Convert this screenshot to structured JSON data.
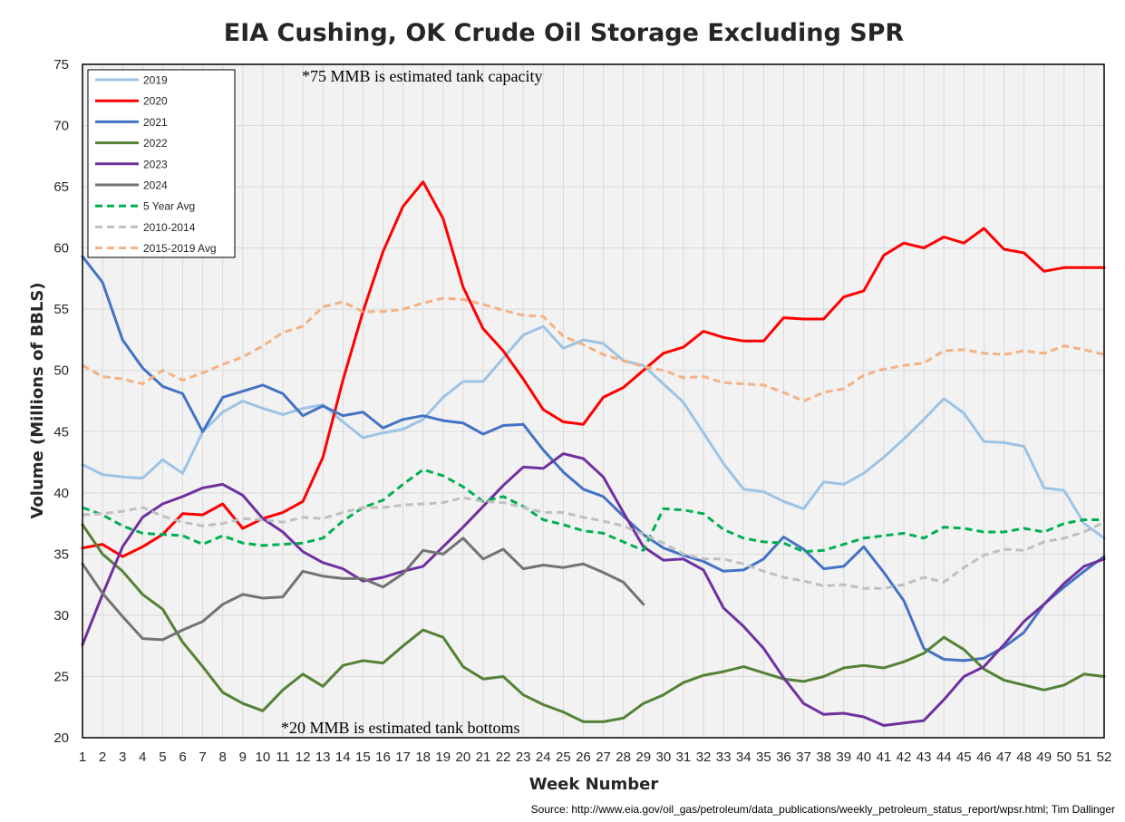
{
  "chart_data": {
    "type": "line",
    "title": "EIA Cushing, OK Crude Oil Storage Excluding SPR",
    "xlabel": "Week Number",
    "ylabel": "Volume (Millions of BBLS)",
    "xlim": [
      1,
      52
    ],
    "ylim": [
      20,
      75
    ],
    "yticks": [
      20,
      25,
      30,
      35,
      40,
      45,
      50,
      55,
      60,
      65,
      70,
      75
    ],
    "xticks": [
      1,
      2,
      3,
      4,
      5,
      6,
      7,
      8,
      9,
      10,
      11,
      12,
      13,
      14,
      15,
      16,
      17,
      18,
      19,
      20,
      21,
      22,
      23,
      24,
      25,
      26,
      27,
      28,
      29,
      30,
      31,
      32,
      33,
      34,
      35,
      36,
      37,
      38,
      39,
      40,
      41,
      42,
      43,
      44,
      45,
      46,
      47,
      48,
      49,
      50,
      51,
      52
    ],
    "grid": "vertical and horizontal gridlines",
    "legend_position": "top-left",
    "annotations": {
      "capacity": "*75 MMB is estimated tank capacity",
      "bottoms": "*20 MMB is estimated tank bottoms"
    },
    "source": "Source: http://www.eia.gov/oil_gas/petroleum/data_publications/weekly_petroleum_status_report/wpsr.html; Tim Dallinger",
    "series": [
      {
        "name": "2019",
        "color": "#9dc3e6",
        "dash": "solid",
        "values": [
          42.3,
          41.5,
          41.3,
          41.2,
          42.7,
          41.6,
          45.0,
          46.6,
          47.5,
          46.9,
          46.4,
          46.9,
          47.2,
          45.8,
          44.5,
          44.9,
          45.2,
          46.0,
          47.8,
          49.1,
          49.1,
          51.0,
          52.9,
          53.6,
          51.8,
          52.5,
          52.2,
          50.8,
          50.4,
          48.9,
          47.4,
          44.9,
          42.4,
          40.3,
          40.1,
          39.3,
          38.7,
          40.9,
          40.7,
          41.6,
          42.9,
          44.4,
          46.0,
          47.7,
          46.5,
          44.2,
          44.1,
          43.8,
          40.4,
          40.2,
          37.5,
          36.3
        ]
      },
      {
        "name": "2020",
        "color": "#ff0000",
        "dash": "solid",
        "values": [
          35.5,
          35.8,
          34.8,
          35.6,
          36.6,
          38.3,
          38.2,
          39.1,
          37.1,
          37.9,
          38.4,
          39.3,
          42.9,
          49.2,
          54.8,
          59.7,
          63.4,
          65.4,
          62.4,
          56.8,
          53.4,
          51.6,
          49.3,
          46.8,
          45.8,
          45.6,
          47.8,
          48.6,
          50.0,
          51.4,
          51.9,
          53.2,
          52.7,
          52.4,
          52.4,
          54.3,
          54.2,
          54.2,
          56.0,
          56.5,
          59.4,
          60.4,
          60.0,
          60.9,
          60.4,
          61.6,
          59.9,
          59.6,
          58.1,
          58.4,
          58.4,
          58.4
        ]
      },
      {
        "name": "2021",
        "color": "#4472c4",
        "dash": "solid",
        "values": [
          59.3,
          57.2,
          52.5,
          50.2,
          48.7,
          48.1,
          45.0,
          47.8,
          48.3,
          48.8,
          48.1,
          46.3,
          47.1,
          46.3,
          46.6,
          45.3,
          46.0,
          46.3,
          45.9,
          45.7,
          44.8,
          45.5,
          45.6,
          43.5,
          41.7,
          40.3,
          39.7,
          38.1,
          36.6,
          35.5,
          34.9,
          34.4,
          33.6,
          33.7,
          34.6,
          36.4,
          35.4,
          33.8,
          34.0,
          35.6,
          33.5,
          31.2,
          27.3,
          26.4,
          26.3,
          26.5,
          27.4,
          28.6,
          30.9,
          32.3,
          33.6,
          34.8
        ]
      },
      {
        "name": "2022",
        "color": "#548235",
        "dash": "solid",
        "values": [
          37.4,
          35.0,
          33.6,
          31.7,
          30.5,
          27.8,
          25.8,
          23.7,
          22.8,
          22.2,
          23.9,
          25.2,
          24.2,
          25.9,
          26.3,
          26.1,
          27.5,
          28.8,
          28.2,
          25.8,
          24.8,
          25.0,
          23.5,
          22.7,
          22.1,
          21.3,
          21.3,
          21.6,
          22.8,
          23.5,
          24.5,
          25.1,
          25.4,
          25.8,
          25.3,
          24.8,
          24.6,
          25.0,
          25.7,
          25.9,
          25.7,
          26.2,
          26.9,
          28.2,
          27.2,
          25.6,
          24.7,
          24.3,
          23.9,
          24.3,
          25.2,
          25.0
        ]
      },
      {
        "name": "2023",
        "color": "#7030a0",
        "dash": "solid",
        "values": [
          27.6,
          31.7,
          35.6,
          38.0,
          39.1,
          39.7,
          40.4,
          40.7,
          39.8,
          37.9,
          36.8,
          35.2,
          34.3,
          33.8,
          32.8,
          33.1,
          33.6,
          34.0,
          35.6,
          37.2,
          38.9,
          40.6,
          42.1,
          42.0,
          43.2,
          42.8,
          41.3,
          38.4,
          35.6,
          34.5,
          34.6,
          33.7,
          30.6,
          29.1,
          27.3,
          24.9,
          22.8,
          21.9,
          22.0,
          21.7,
          21.0,
          21.2,
          21.4,
          23.1,
          25.0,
          25.8,
          27.6,
          29.5,
          30.9,
          32.6,
          34.0,
          34.6
        ]
      },
      {
        "name": "2024",
        "color": "#737373",
        "dash": "solid",
        "values": [
          34.2,
          31.8,
          29.9,
          28.1,
          28.0,
          28.8,
          29.5,
          30.9,
          31.7,
          31.4,
          31.5,
          33.6,
          33.2,
          33.0,
          33.0,
          32.3,
          33.4,
          35.3,
          35.0,
          36.3,
          34.6,
          35.4,
          33.8,
          34.1,
          33.9,
          34.2,
          33.5,
          32.7,
          30.9
        ]
      },
      {
        "name": "5 Year Avg",
        "color": "#00b050",
        "dash": "dash",
        "values": [
          38.8,
          38.2,
          37.3,
          36.7,
          36.6,
          36.5,
          35.8,
          36.5,
          35.9,
          35.7,
          35.8,
          35.9,
          36.3,
          37.7,
          38.8,
          39.4,
          40.7,
          41.9,
          41.4,
          40.5,
          39.3,
          39.7,
          38.9,
          37.8,
          37.4,
          36.9,
          36.7,
          36.0,
          35.3,
          38.7,
          38.6,
          38.3,
          37.0,
          36.3,
          36.0,
          35.9,
          35.2,
          35.3,
          35.8,
          36.3,
          36.5,
          36.7,
          36.3,
          37.2,
          37.1,
          36.8,
          36.8,
          37.1,
          36.8,
          37.5,
          37.8,
          37.8
        ]
      },
      {
        "name": "2010-2014",
        "color": "#bfbfbf",
        "dash": "dash",
        "values": [
          38.2,
          38.3,
          38.5,
          38.8,
          38.1,
          37.6,
          37.3,
          37.5,
          37.9,
          37.8,
          37.6,
          38.0,
          37.9,
          38.4,
          38.8,
          38.8,
          39.0,
          39.1,
          39.2,
          39.6,
          39.3,
          39.2,
          38.8,
          38.4,
          38.4,
          38.0,
          37.7,
          37.3,
          36.6,
          35.9,
          35.0,
          34.6,
          34.6,
          34.2,
          33.6,
          33.1,
          32.8,
          32.4,
          32.5,
          32.2,
          32.2,
          32.5,
          33.1,
          32.7,
          33.9,
          34.9,
          35.4,
          35.3,
          36.0,
          36.3,
          36.8,
          37.6
        ]
      },
      {
        "name": "2015-2019 Avg",
        "color": "#f4b183",
        "dash": "dash",
        "values": [
          50.4,
          49.5,
          49.3,
          48.9,
          50.0,
          49.2,
          49.8,
          50.5,
          51.1,
          52.0,
          53.1,
          53.6,
          55.2,
          55.6,
          54.8,
          54.8,
          55.0,
          55.5,
          55.9,
          55.8,
          55.4,
          54.9,
          54.5,
          54.4,
          52.8,
          52.1,
          51.3,
          50.8,
          50.3,
          50.0,
          49.4,
          49.5,
          49.0,
          48.9,
          48.8,
          48.2,
          47.5,
          48.2,
          48.5,
          49.6,
          50.1,
          50.4,
          50.6,
          51.6,
          51.7,
          51.4,
          51.3,
          51.6,
          51.4,
          52.0,
          51.7,
          51.3
        ]
      }
    ]
  }
}
